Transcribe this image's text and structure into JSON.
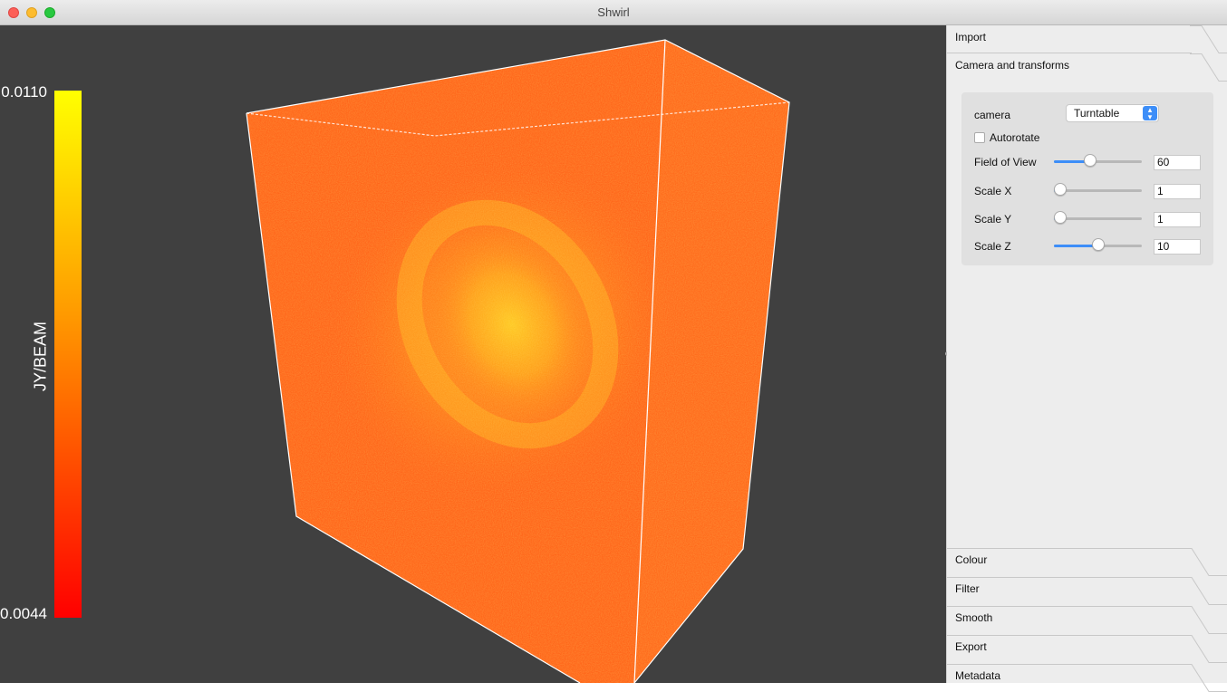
{
  "window": {
    "title": "Shwirl"
  },
  "colorbar": {
    "max": "0.0110",
    "min": "0.0044",
    "unit": "JY/BEAM"
  },
  "panel": {
    "tabs_top": [
      "Import",
      "Camera and transforms"
    ],
    "camera": {
      "camera_label": "camera",
      "camera_value": "Turntable",
      "autorotate_label": "Autorotate",
      "autorotate_checked": false,
      "sliders": [
        {
          "label": "Field of View",
          "value": "60",
          "fraction": 0.4
        },
        {
          "label": "Scale X",
          "value": "1",
          "fraction": 0.0
        },
        {
          "label": "Scale Y",
          "value": "1",
          "fraction": 0.0
        },
        {
          "label": "Scale Z",
          "value": "10",
          "fraction": 0.5
        }
      ]
    },
    "tabs_bottom": [
      "Colour",
      "Filter",
      "Smooth",
      "Export",
      "Metadata"
    ]
  },
  "colors": {
    "accent": "#3d8ef8",
    "viewport_bg": "#404040",
    "volume": "#ff5f10"
  }
}
